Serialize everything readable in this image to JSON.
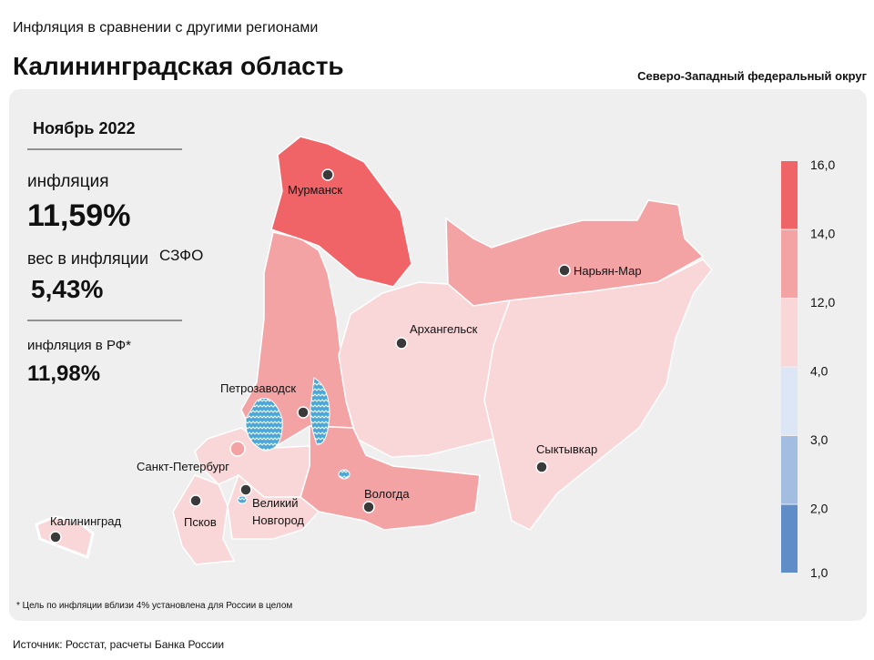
{
  "header": {
    "subtitle": "Инфляция в сравнении с другими регионами",
    "title": "Калининградская область",
    "district": "Северо-Западный федеральный округ"
  },
  "panel": {
    "period": "Ноябрь 2022",
    "inflation_label": "инфляция",
    "inflation": "11,59%",
    "weight_label": "вес в инфляции",
    "weight_region": "СЗФО",
    "weight": "5,43%",
    "rf_label": "инфляция  в РФ*",
    "rf_inflation": "11,98%"
  },
  "legend": {
    "ticks": [
      "16,0",
      "14,0",
      "12,0",
      "4,0",
      "3,0",
      "2,0",
      "1,0"
    ],
    "colors": [
      "#ef6466",
      "#f4a3a5",
      "#f9d7d9",
      "#dde6f5",
      "#a3bde0",
      "#5f8dc8"
    ]
  },
  "cities": [
    "Мурманск",
    "Нарьян-Мар",
    "Архангельск",
    "Петрозаводск",
    "Сыктывкар",
    "Санкт-Петербург",
    "Вологда",
    "Псков",
    "Великий",
    "Новгород",
    "Калининград"
  ],
  "footnote": "* Цель по инфляции вблизи 4% установлена для России в целом",
  "source": "Источник: Росстат, расчеты Банка России"
}
